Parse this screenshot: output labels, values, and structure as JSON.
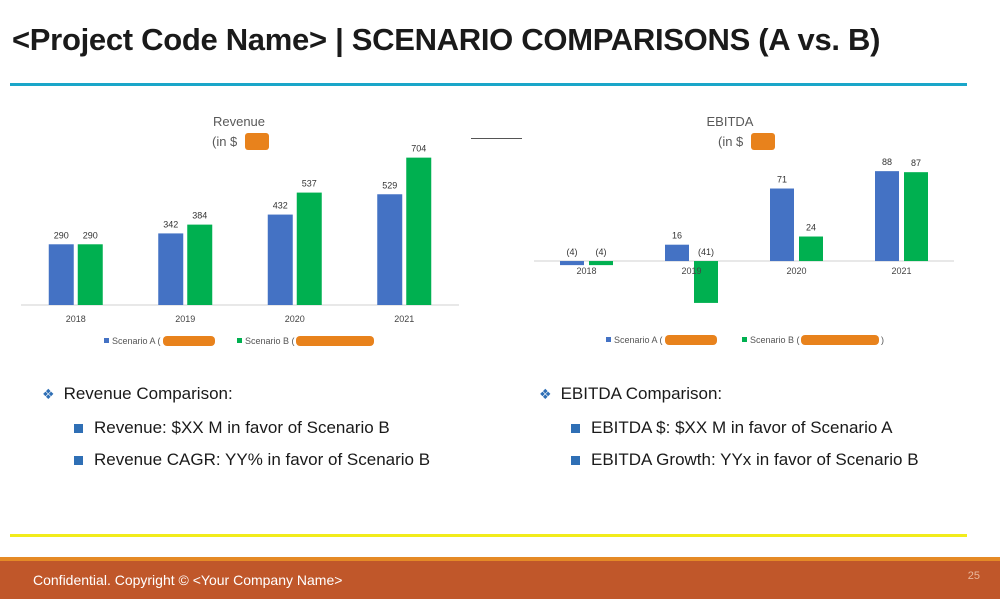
{
  "slide": {
    "title": "<Project Code Name> | SCENARIO COMPARISONS (A vs. B)",
    "footer": "Confidential. Copyright © <Your Company Name>",
    "page_number": "25"
  },
  "colors": {
    "scenario_a": "#4472c4",
    "scenario_b": "#00b050",
    "accent_top_rule": "#1aa6c9",
    "accent_bottom_rule": "#f2ec1b",
    "footer_bg": "#c0572a",
    "redaction": "#e8821c"
  },
  "chart_data": [
    {
      "type": "bar",
      "title": "Revenue",
      "subtitle": "(in $",
      "categories": [
        "2018",
        "2019",
        "2020",
        "2021"
      ],
      "series": [
        {
          "name": "Scenario A (",
          "values": [
            290,
            342,
            432,
            529
          ]
        },
        {
          "name": "Scenario B (",
          "values": [
            290,
            384,
            537,
            704
          ]
        }
      ],
      "ylim": [
        0,
        750
      ],
      "grid": false,
      "legend_position": "bottom"
    },
    {
      "type": "bar",
      "title": "EBITDA",
      "subtitle": "(in $",
      "categories": [
        "2018",
        "2019",
        "2020",
        "2021"
      ],
      "series": [
        {
          "name": "Scenario A (",
          "values": [
            -4,
            16,
            71,
            88
          ]
        },
        {
          "name": "Scenario B (",
          "values": [
            -4,
            -41,
            24,
            87
          ]
        }
      ],
      "ylim": [
        -45,
        95
      ],
      "grid": false,
      "legend_position": "bottom",
      "legend_trailing": ")"
    }
  ],
  "bullets": {
    "left": {
      "heading": "Revenue Comparison:",
      "items": [
        "Revenue: $XX M in favor of Scenario B",
        "Revenue CAGR: YY% in favor of Scenario B"
      ]
    },
    "right": {
      "heading": "EBITDA Comparison:",
      "items": [
        "EBITDA $: $XX M in favor of Scenario A",
        "EBITDA Growth: YYx in favor of Scenario B"
      ]
    }
  }
}
